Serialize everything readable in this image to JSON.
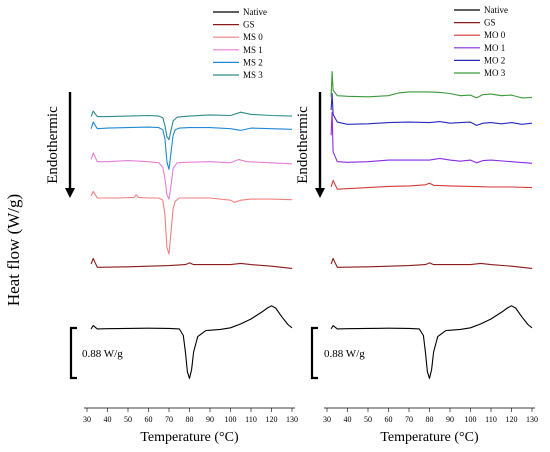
{
  "figure": {
    "shared_ylabel": "Heat flow (W/g)"
  },
  "chart_data": [
    {
      "type": "line",
      "panel": "left",
      "xlabel": "Temperature (°C)",
      "ylabel": "",
      "xlim": [
        30,
        130
      ],
      "x_ticks": [
        30,
        40,
        50,
        60,
        70,
        80,
        90,
        100,
        110,
        120,
        130
      ],
      "x_tick_labels": [
        "30",
        "40",
        "50",
        "60",
        "70",
        "80",
        "90",
        "100",
        "110",
        "120",
        "130"
      ],
      "direction_annotation": "Endothermic",
      "scale_bar_label": "0.88 W/g",
      "legend_position": "top-right",
      "series": [
        {
          "name": "Native",
          "color": "#000000",
          "x": [
            32,
            33,
            35,
            40,
            50,
            60,
            70,
            75,
            77,
            78,
            79,
            80,
            81,
            82,
            84,
            88,
            95,
            100,
            105,
            110,
            115,
            118,
            120,
            122,
            125,
            128,
            130
          ],
          "y": [
            0.1,
            0.4,
            0.1,
            0.12,
            0.15,
            0.16,
            0.15,
            0.1,
            -0.5,
            -2.0,
            -3.8,
            -4.4,
            -3.6,
            -2.0,
            -0.6,
            -0.05,
            0.05,
            0.2,
            0.55,
            1.0,
            1.6,
            2.0,
            2.2,
            2.0,
            1.2,
            0.5,
            0.2
          ]
        },
        {
          "name": "GS",
          "color": "#8b1a1a",
          "x": [
            32,
            33,
            35,
            50,
            70,
            78,
            80,
            82,
            90,
            100,
            105,
            110,
            120,
            130
          ],
          "y": [
            6.0,
            6.5,
            5.7,
            5.75,
            5.85,
            5.95,
            6.1,
            5.95,
            5.95,
            5.95,
            6.05,
            5.95,
            5.8,
            5.6
          ]
        },
        {
          "name": "MS 0",
          "color": "#f08080",
          "x": [
            32,
            33,
            35,
            45,
            53,
            54,
            55,
            60,
            65,
            67,
            68,
            69,
            70,
            71,
            72,
            73,
            75,
            80,
            90,
            100,
            102,
            105,
            110,
            120,
            130
          ],
          "y": [
            12.2,
            12.6,
            12.0,
            12.0,
            12.05,
            12.3,
            12.05,
            12.0,
            12.0,
            11.8,
            10.5,
            7.5,
            6.9,
            9.0,
            11.0,
            11.7,
            12.0,
            12.0,
            12.0,
            11.8,
            11.6,
            11.8,
            11.9,
            11.9,
            11.85
          ]
        },
        {
          "name": "MS 1",
          "color": "#e67ed6",
          "x": [
            32,
            33,
            35,
            40,
            50,
            60,
            65,
            67,
            68,
            69,
            70,
            71,
            72,
            74,
            78,
            90,
            100,
            104,
            108,
            115,
            125,
            130
          ],
          "y": [
            15.5,
            16.1,
            15.3,
            15.3,
            15.4,
            15.3,
            15.2,
            14.8,
            13.8,
            12.3,
            11.9,
            13.2,
            14.7,
            15.2,
            15.25,
            15.3,
            15.2,
            15.5,
            15.3,
            15.25,
            15.15,
            15.1
          ]
        },
        {
          "name": "MS 2",
          "color": "#1f8ad6",
          "x": [
            32,
            33,
            35,
            40,
            50,
            60,
            65,
            67,
            68,
            69,
            70,
            71,
            72,
            73,
            75,
            80,
            90,
            100,
            105,
            110,
            120,
            130
          ],
          "y": [
            18.3,
            18.9,
            18.3,
            18.35,
            18.4,
            18.45,
            18.4,
            18.2,
            17.4,
            15.3,
            14.6,
            16.2,
            17.7,
            18.2,
            18.35,
            18.4,
            18.4,
            18.3,
            18.15,
            18.35,
            18.3,
            18.25
          ]
        },
        {
          "name": "MS 3",
          "color": "#2e8b8b",
          "x": [
            32,
            33,
            35,
            40,
            50,
            60,
            65,
            67,
            68,
            69,
            70,
            71,
            72,
            74,
            80,
            90,
            100,
            105,
            110,
            120,
            130
          ],
          "y": [
            19.4,
            19.9,
            19.4,
            19.4,
            19.45,
            19.5,
            19.45,
            19.3,
            18.6,
            17.6,
            17.3,
            18.2,
            19.0,
            19.35,
            19.45,
            19.55,
            19.5,
            19.8,
            19.6,
            19.5,
            19.45
          ]
        }
      ]
    },
    {
      "type": "line",
      "panel": "right",
      "xlabel": "Temperature (°C)",
      "ylabel": "",
      "xlim": [
        30,
        130
      ],
      "x_ticks": [
        30,
        40,
        50,
        60,
        70,
        80,
        90,
        100,
        110,
        120,
        130
      ],
      "x_tick_labels": [
        "30",
        "40",
        "50",
        "60",
        "70",
        "80",
        "90",
        "100",
        "110",
        "120",
        "130"
      ],
      "direction_annotation": "Endothermic",
      "scale_bar_label": "0.88 W/g",
      "legend_position": "top-right",
      "series": [
        {
          "name": "Native",
          "color": "#000000",
          "x": [
            32,
            33,
            35,
            40,
            50,
            60,
            70,
            75,
            77,
            78,
            79,
            80,
            81,
            82,
            84,
            88,
            95,
            100,
            105,
            110,
            115,
            118,
            120,
            122,
            125,
            128,
            130
          ],
          "y": [
            0.1,
            0.4,
            0.1,
            0.12,
            0.15,
            0.16,
            0.15,
            0.1,
            -0.5,
            -2.0,
            -3.8,
            -4.4,
            -3.6,
            -2.0,
            -0.6,
            -0.05,
            0.05,
            0.2,
            0.55,
            1.0,
            1.6,
            2.0,
            2.2,
            2.0,
            1.2,
            0.5,
            0.2
          ]
        },
        {
          "name": "GS",
          "color": "#8b1a1a",
          "x": [
            32,
            33,
            35,
            50,
            70,
            78,
            80,
            82,
            90,
            100,
            105,
            110,
            120,
            130
          ],
          "y": [
            6.0,
            6.5,
            5.7,
            5.75,
            5.85,
            5.95,
            6.1,
            5.95,
            5.95,
            5.95,
            6.05,
            5.95,
            5.8,
            5.6
          ]
        },
        {
          "name": "MO 0",
          "color": "#d23a3a",
          "x": [
            32,
            33,
            35,
            50,
            60,
            70,
            78,
            80,
            82,
            90,
            100,
            110,
            120,
            130
          ],
          "y": [
            13.0,
            13.6,
            12.8,
            12.95,
            13.05,
            13.1,
            13.2,
            13.35,
            13.15,
            13.1,
            13.05,
            13.0,
            13.0,
            12.95
          ]
        },
        {
          "name": "MO 1",
          "color": "#8a2be2",
          "x": [
            32,
            32.5,
            33,
            35,
            40,
            50,
            60,
            70,
            80,
            85,
            90,
            95,
            100,
            103,
            106,
            110,
            120,
            130
          ],
          "y": [
            17.7,
            19.8,
            16.2,
            15.3,
            15.25,
            15.3,
            15.45,
            15.45,
            15.45,
            15.6,
            15.45,
            15.35,
            15.45,
            15.2,
            15.4,
            15.45,
            15.3,
            15.15
          ]
        },
        {
          "name": "MO 2",
          "color": "#2a2ab8",
          "x": [
            32,
            32.5,
            33,
            35,
            40,
            50,
            60,
            70,
            80,
            85,
            90,
            95,
            100,
            103,
            106,
            110,
            115,
            120,
            125,
            130
          ],
          "y": [
            20.0,
            21.5,
            19.6,
            18.9,
            18.7,
            18.75,
            18.85,
            18.9,
            18.85,
            18.95,
            18.8,
            18.85,
            18.9,
            18.6,
            18.8,
            18.85,
            18.75,
            18.85,
            18.7,
            18.8
          ]
        },
        {
          "name": "MO 3",
          "color": "#3a9a3a",
          "x": [
            32,
            32.5,
            33,
            35,
            40,
            50,
            60,
            65,
            70,
            80,
            85,
            90,
            95,
            100,
            103,
            106,
            110,
            115,
            120,
            125,
            130
          ],
          "y": [
            21.2,
            23.5,
            21.8,
            21.3,
            21.25,
            21.2,
            21.3,
            21.55,
            21.65,
            21.65,
            21.6,
            21.5,
            21.3,
            21.35,
            21.1,
            21.4,
            21.45,
            21.3,
            21.35,
            21.1,
            21.15
          ]
        }
      ]
    }
  ]
}
